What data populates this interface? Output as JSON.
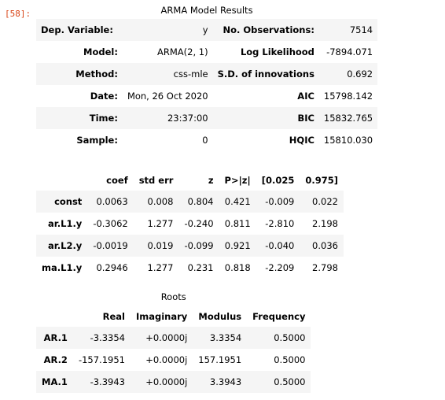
{
  "cell": {
    "prompt": "[58]:"
  },
  "summary": {
    "caption": "ARMA Model Results",
    "rows": [
      {
        "l1": "Dep. Variable:",
        "v1": "y",
        "l2": "No. Observations:",
        "v2": "7514"
      },
      {
        "l1": "Model:",
        "v1": "ARMA(2, 1)",
        "l2": "Log Likelihood",
        "v2": "-7894.071"
      },
      {
        "l1": "Method:",
        "v1": "css-mle",
        "l2": "S.D. of innovations",
        "v2": "0.692"
      },
      {
        "l1": "Date:",
        "v1": "Mon, 26 Oct 2020",
        "l2": "AIC",
        "v2": "15798.142"
      },
      {
        "l1": "Time:",
        "v1": "23:37:00",
        "l2": "BIC",
        "v2": "15832.765"
      },
      {
        "l1": "Sample:",
        "v1": "0",
        "l2": "HQIC",
        "v2": "15810.030"
      }
    ]
  },
  "coefficients": {
    "headers": [
      "",
      "coef",
      "std err",
      "z",
      "P>|z|",
      "[0.025",
      "0.975]"
    ],
    "rows": [
      {
        "name": "const",
        "cells": [
          "0.0063",
          "0.008",
          "0.804",
          "0.421",
          "-0.009",
          "0.022"
        ]
      },
      {
        "name": "ar.L1.y",
        "cells": [
          "-0.3062",
          "1.277",
          "-0.240",
          "0.811",
          "-2.810",
          "2.198"
        ]
      },
      {
        "name": "ar.L2.y",
        "cells": [
          "-0.0019",
          "0.019",
          "-0.099",
          "0.921",
          "-0.040",
          "0.036"
        ]
      },
      {
        "name": "ma.L1.y",
        "cells": [
          "0.2946",
          "1.277",
          "0.231",
          "0.818",
          "-2.209",
          "2.798"
        ]
      }
    ]
  },
  "roots": {
    "caption": "Roots",
    "headers": [
      "",
      "Real",
      "Imaginary",
      "Modulus",
      "Frequency"
    ],
    "rows": [
      {
        "name": "AR.1",
        "cells": [
          "-3.3354",
          "+0.0000j",
          "3.3354",
          "0.5000"
        ]
      },
      {
        "name": "AR.2",
        "cells": [
          "-157.1951",
          "+0.0000j",
          "157.1951",
          "0.5000"
        ]
      },
      {
        "name": "MA.1",
        "cells": [
          "-3.3943",
          "+0.0000j",
          "3.3943",
          "0.5000"
        ]
      }
    ]
  }
}
